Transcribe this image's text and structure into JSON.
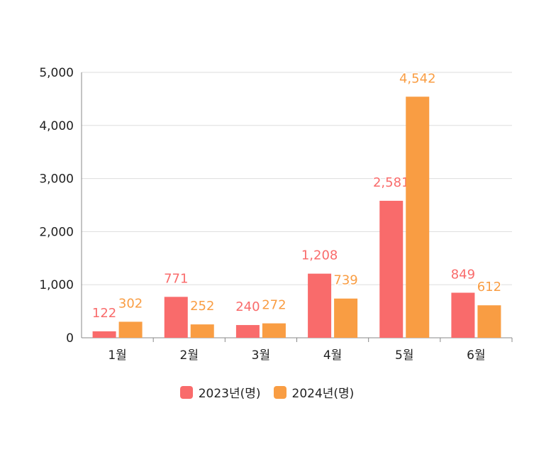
{
  "chart_data": {
    "type": "bar",
    "categories": [
      "1월",
      "2월",
      "3월",
      "4월",
      "5월",
      "6월"
    ],
    "series": [
      {
        "name": "2023년(명)",
        "values": [
          122,
          771,
          240,
          1208,
          2581,
          849
        ],
        "color": "#f96b6b",
        "labels": [
          "122",
          "771",
          "240",
          "1,208",
          "2,581",
          "849"
        ]
      },
      {
        "name": "2024년(명)",
        "values": [
          302,
          252,
          272,
          739,
          4542,
          612
        ],
        "color": "#f99d43",
        "labels": [
          "302",
          "252",
          "272",
          "739",
          "4,542",
          "612"
        ]
      }
    ],
    "ylim": [
      0,
      5000
    ],
    "yticks": [
      0,
      1000,
      2000,
      3000,
      4000,
      5000
    ],
    "ytick_labels": [
      "0",
      "1,000",
      "2,000",
      "3,000",
      "4,000",
      "5,000"
    ],
    "grid": true,
    "legend_position": "bottom-center"
  }
}
